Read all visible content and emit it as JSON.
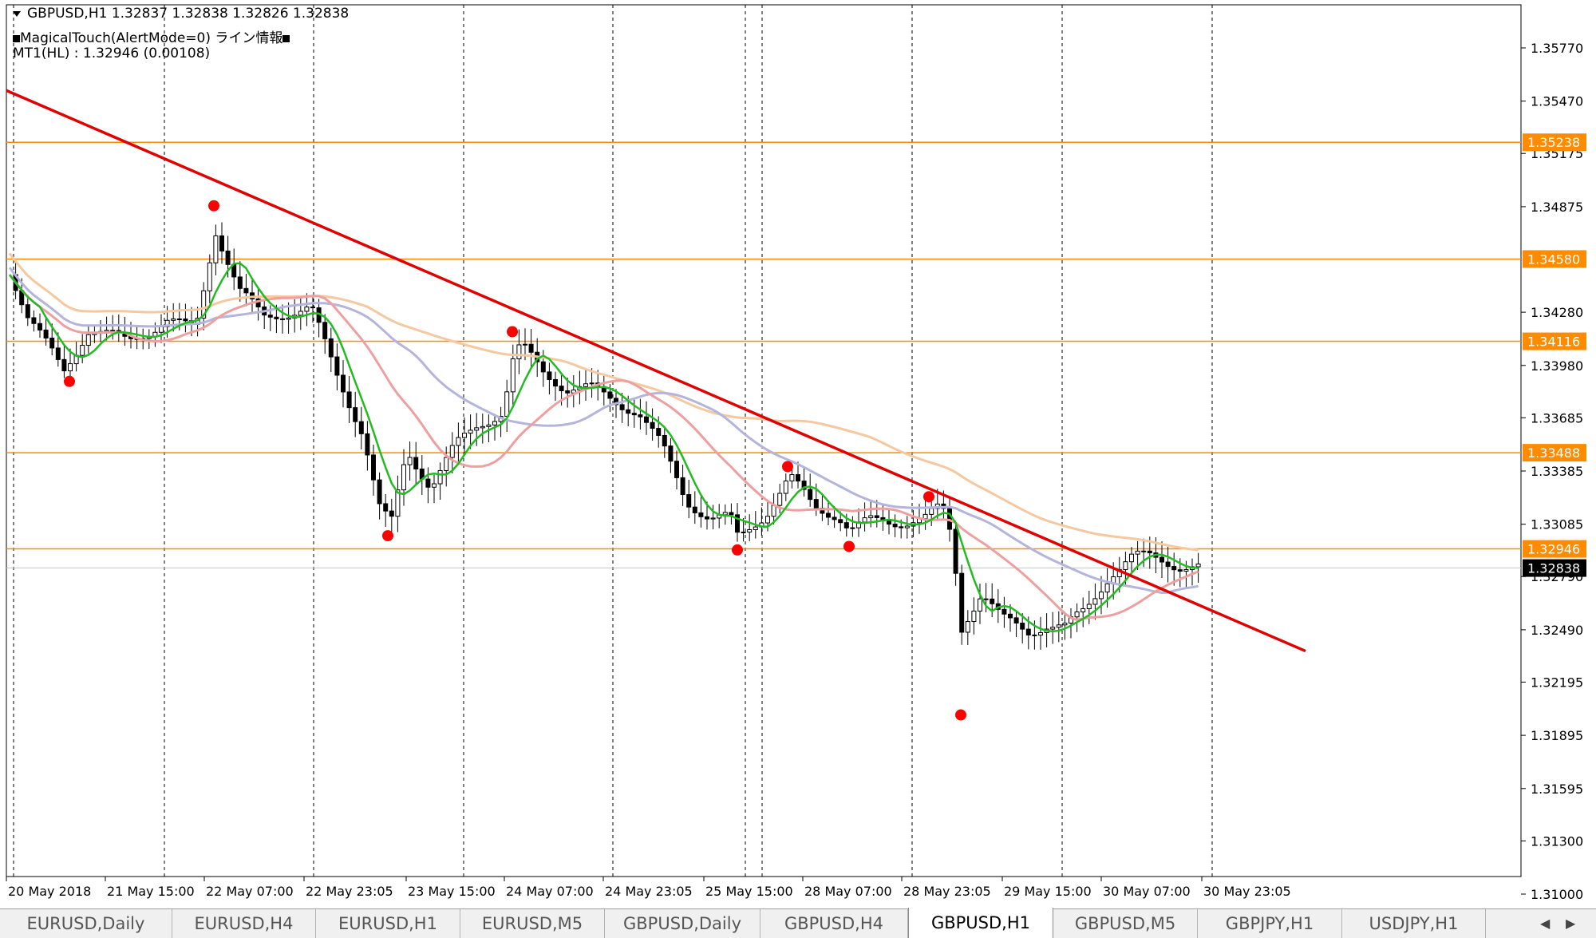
{
  "header": {
    "symbol_line": "GBPUSD,H1  1.32837 1.32838 1.32826 1.32838",
    "indicator_line": "MagicalTouch(AlertMode=0) ライン情報",
    "mt1_line": "MT1(HL) : 1.32946 (0.00108)"
  },
  "price_axis": {
    "ticks": [
      "1.35770",
      "1.35470",
      "1.35175",
      "1.34875",
      "1.34280",
      "1.33980",
      "1.33685",
      "1.33385",
      "1.33085",
      "1.32790",
      "1.32490",
      "1.32195",
      "1.31895",
      "1.31595",
      "1.31300",
      "1.31000"
    ],
    "current_price": "1.32838"
  },
  "level_lines": [
    {
      "label": "1.35238",
      "value": 1.35238
    },
    {
      "label": "1.34580",
      "value": 1.3458
    },
    {
      "label": "1.34116",
      "value": 1.34116
    },
    {
      "label": "1.33488",
      "value": 1.33488
    },
    {
      "label": "1.32946",
      "value": 1.32946
    }
  ],
  "time_axis": [
    "20 May 2018",
    "21 May 15:00",
    "22 May 07:00",
    "22 May 23:05",
    "23 May 15:00",
    "24 May 07:00",
    "24 May 23:05",
    "25 May 15:00",
    "28 May 07:00",
    "28 May 23:05",
    "29 May 15:00",
    "30 May 07:00",
    "30 May 23:05"
  ],
  "trendline": {
    "start_price": 1.3553,
    "end_price": 1.3237
  },
  "swing_points": [
    {
      "type": "high",
      "price": 1.3488
    },
    {
      "type": "low",
      "price": 1.3389
    },
    {
      "type": "low",
      "price": 1.3302
    },
    {
      "type": "high",
      "price": 1.3417
    },
    {
      "type": "low",
      "price": 1.3294
    },
    {
      "type": "high",
      "price": 1.3341
    },
    {
      "type": "low",
      "price": 1.3296
    },
    {
      "type": "high",
      "price": 1.3324
    },
    {
      "type": "low",
      "price": 1.3201
    }
  ],
  "colors": {
    "level_line": "#ff8c00",
    "trendline": "#e00000",
    "swing_dot": "#ff0000",
    "ma_fast": "#22bb22",
    "ma_mid": "#eea0a0",
    "ma_slow": "#f5c8a0",
    "ma_lavender": "#b4b4dc",
    "current_label_bg": "#000000"
  },
  "tabs": [
    {
      "label": "EURUSD,Daily",
      "active": false
    },
    {
      "label": "EURUSD,H4",
      "active": false
    },
    {
      "label": "EURUSD,H1",
      "active": false
    },
    {
      "label": "EURUSD,M5",
      "active": false
    },
    {
      "label": "GBPUSD,Daily",
      "active": false
    },
    {
      "label": "GBPUSD,H4",
      "active": false
    },
    {
      "label": "GBPUSD,H1",
      "active": true
    },
    {
      "label": "GBPUSD,M5",
      "active": false
    },
    {
      "label": "GBPJPY,H1",
      "active": false
    },
    {
      "label": "USDJPY,H1",
      "active": false
    }
  ],
  "tab_scroll": {
    "left_icon": "arrow-left-icon",
    "right_icon": "arrow-right-icon"
  }
}
